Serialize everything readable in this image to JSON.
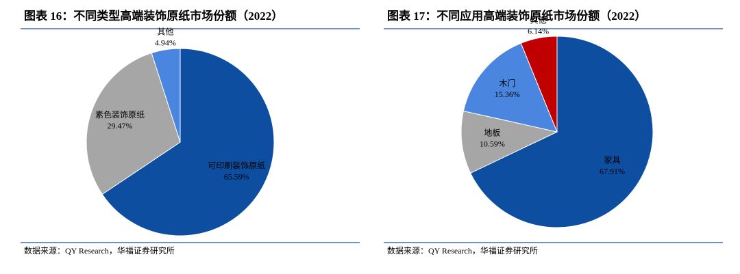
{
  "chart_data": [
    {
      "type": "pie",
      "title": "图表 16：不同类型高端装饰原纸市场份额（2022）",
      "categories": [
        "可印刷装饰原纸",
        "素色装饰原纸",
        "其他"
      ],
      "values": [
        65.59,
        29.47,
        4.94
      ],
      "value_labels": [
        "65.59%",
        "29.47%",
        "4.94%"
      ],
      "colors": [
        "#0d4ea0",
        "#a6a6a6",
        "#4a86e0"
      ],
      "source": "数据来源：QY Research，华福证券研究所"
    },
    {
      "type": "pie",
      "title": "图表 17：不同应用高端装饰原纸市场份额（2022）",
      "categories": [
        "家具",
        "地板",
        "木门",
        "其他"
      ],
      "values": [
        67.91,
        10.59,
        15.36,
        6.14
      ],
      "value_labels": [
        "67.91%",
        "10.59%",
        "15.36%",
        "6.14%"
      ],
      "colors": [
        "#0d4ea0",
        "#a6a6a6",
        "#4a86e0",
        "#c00000"
      ],
      "source": "数据来源：QY Research，华福证券研究所"
    }
  ]
}
